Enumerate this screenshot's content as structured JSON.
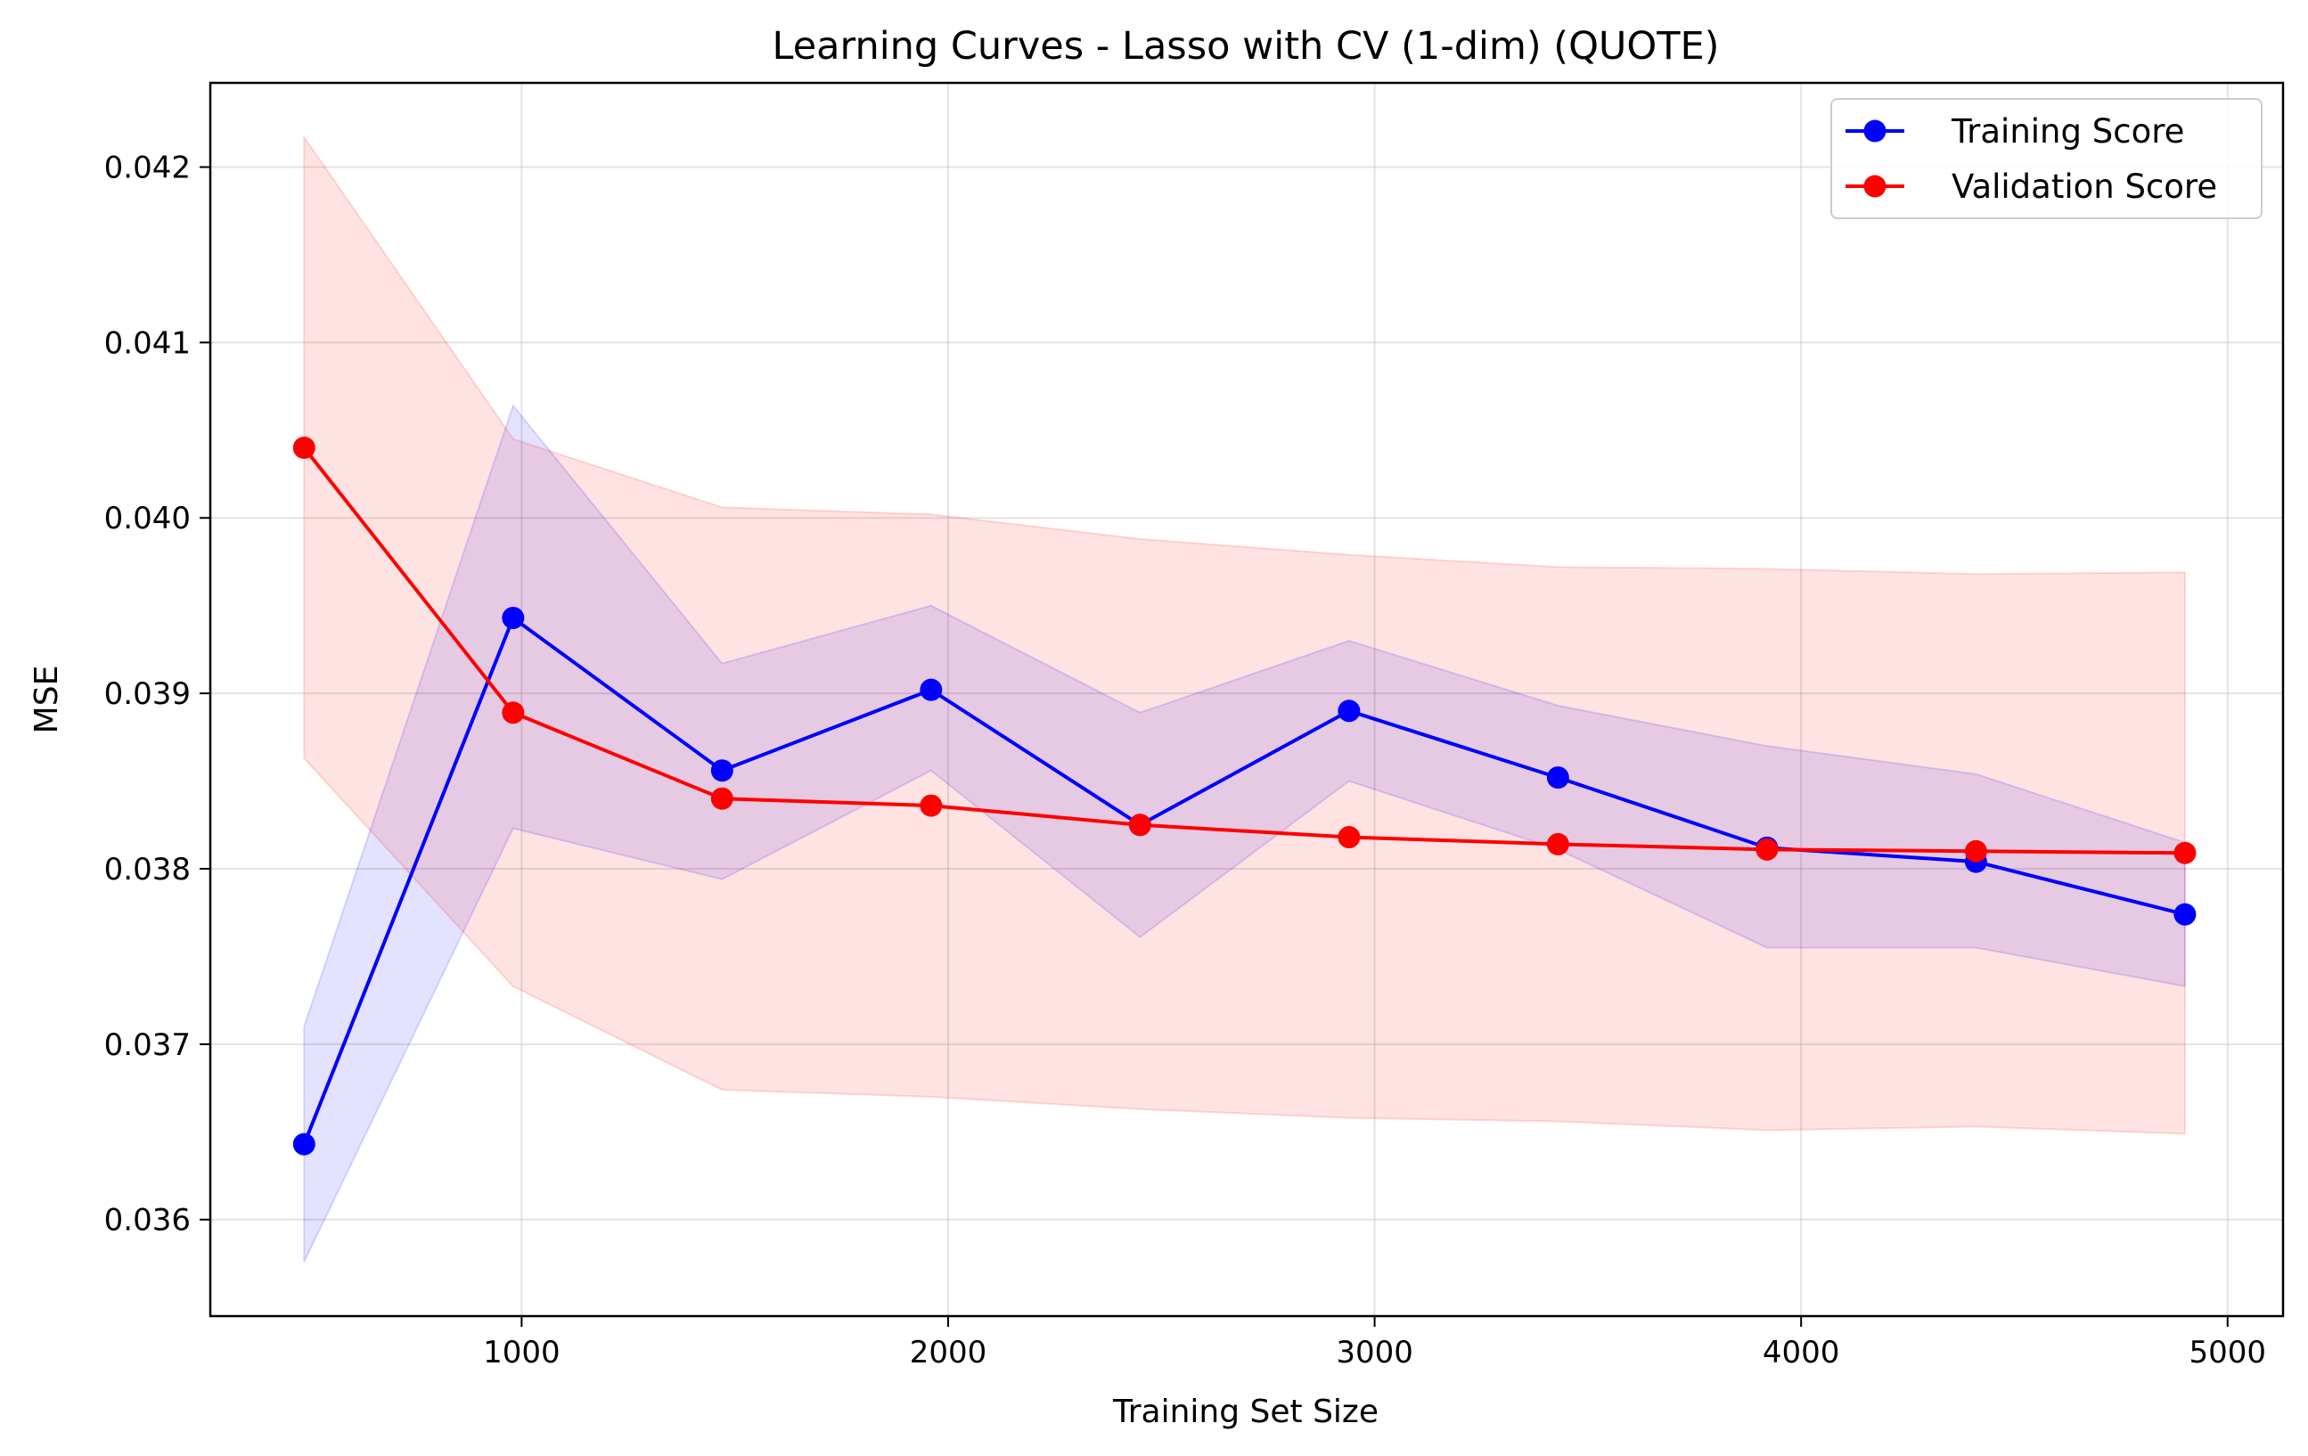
{
  "chart_data": {
    "type": "line",
    "title": "Learning Curves - Lasso with CV (1-dim) (QUOTE)",
    "xlabel": "Training Set Size",
    "ylabel": "MSE",
    "xlim": [
      270,
      5130
    ],
    "ylim": [
      0.03545,
      0.04248
    ],
    "xticks": [
      1000,
      2000,
      3000,
      4000,
      5000
    ],
    "yticks": [
      0.036,
      0.037,
      0.038,
      0.039,
      0.04,
      0.041,
      0.042
    ],
    "grid": true,
    "legend_position": "top-right",
    "x": [
      490,
      980,
      1470,
      1960,
      2450,
      2940,
      3430,
      3920,
      4410,
      4900
    ],
    "series": [
      {
        "name": "Training Score",
        "color": "#0000ff",
        "band_color": "#0000ff",
        "values": [
          0.03643,
          0.03943,
          0.03856,
          0.03902,
          0.03825,
          0.0389,
          0.03852,
          0.03812,
          0.03804,
          0.03774
        ],
        "lower": [
          0.03576,
          0.03823,
          0.03794,
          0.03856,
          0.03761,
          0.0385,
          0.03811,
          0.03755,
          0.03755,
          0.03733
        ],
        "upper": [
          0.0371,
          0.04064,
          0.03917,
          0.0395,
          0.03889,
          0.0393,
          0.03893,
          0.0387,
          0.03854,
          0.03815
        ]
      },
      {
        "name": "Validation Score",
        "color": "#ff0000",
        "band_color": "#ff0000",
        "values": [
          0.0404,
          0.03889,
          0.0384,
          0.03836,
          0.03825,
          0.03818,
          0.03814,
          0.03811,
          0.0381,
          0.03809
        ],
        "lower": [
          0.03863,
          0.03733,
          0.03674,
          0.0367,
          0.03663,
          0.03658,
          0.03656,
          0.03651,
          0.03653,
          0.03649
        ],
        "upper": [
          0.04217,
          0.04045,
          0.04006,
          0.04002,
          0.03988,
          0.03979,
          0.03972,
          0.03971,
          0.03968,
          0.03969
        ]
      }
    ]
  }
}
